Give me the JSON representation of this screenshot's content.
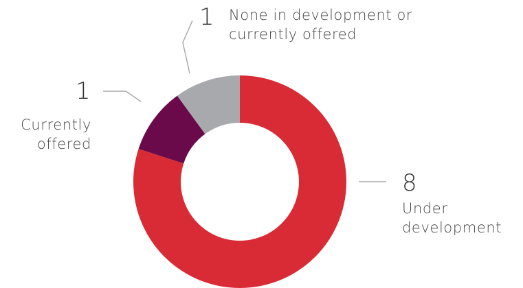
{
  "chart_data": {
    "type": "donut",
    "categories": [
      "Under development",
      "Currently offered",
      "None in development or currently offered"
    ],
    "values": [
      8,
      1,
      1
    ],
    "colors": [
      "#d92b35",
      "#6a0a4a",
      "#a8a9ad"
    ]
  }
}
